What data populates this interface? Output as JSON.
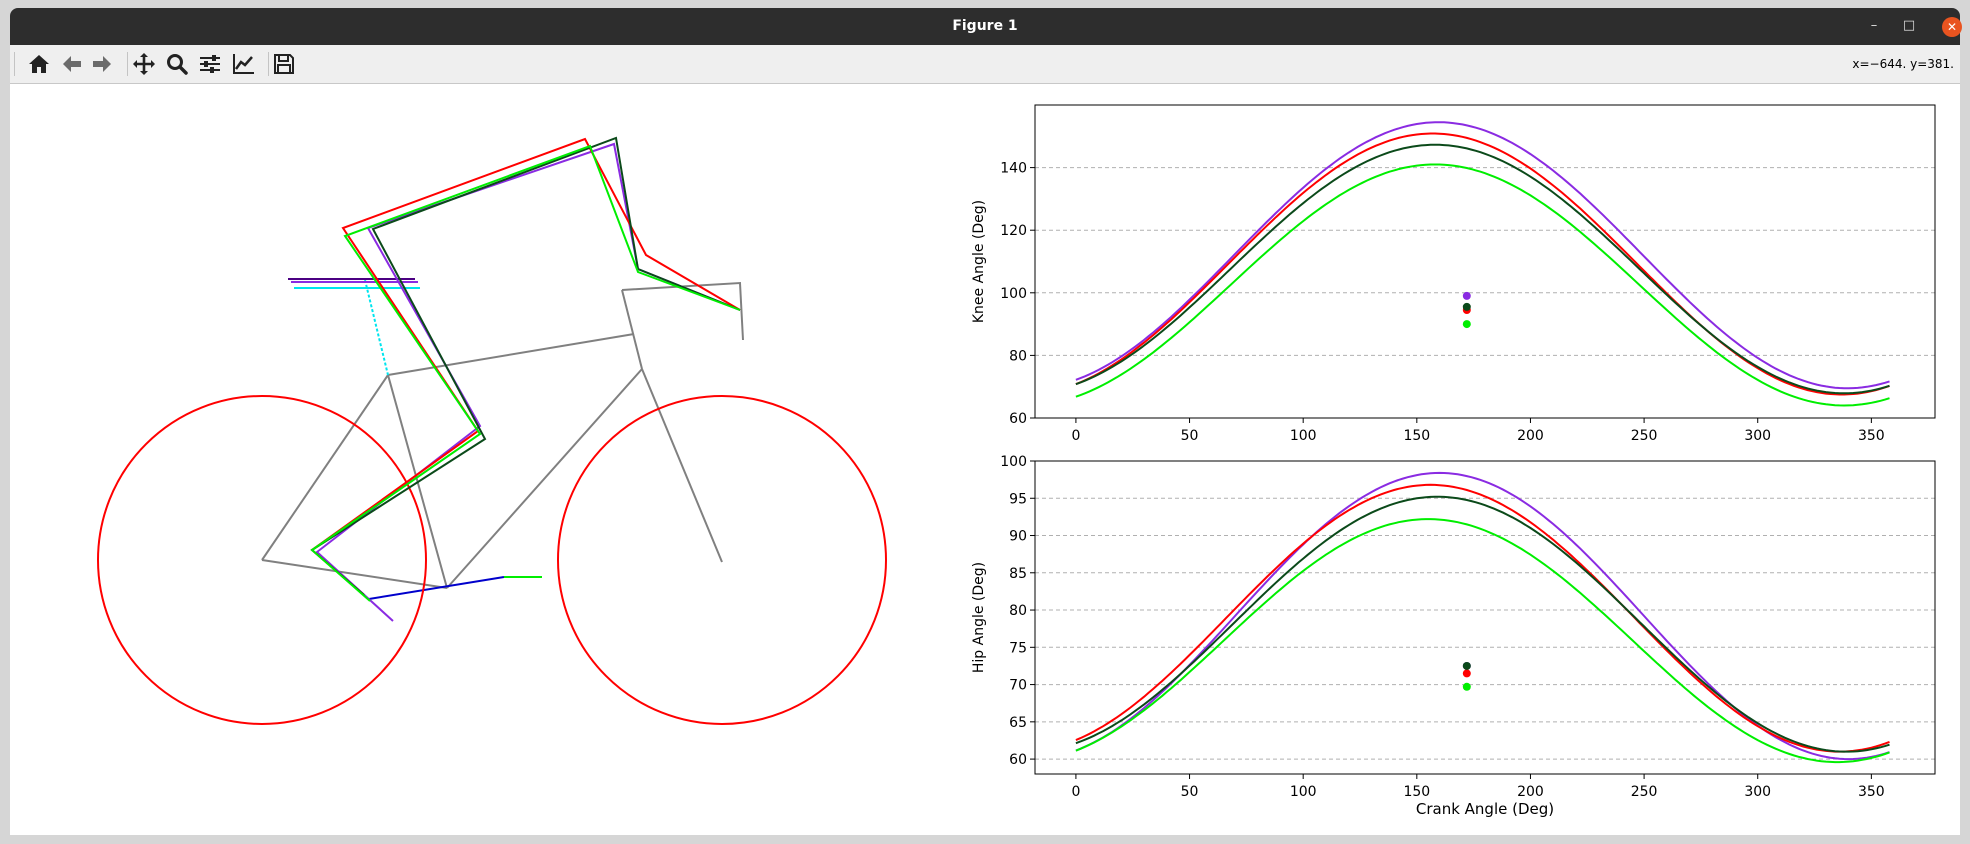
{
  "window": {
    "title": "Figure 1",
    "min_glyph": "–",
    "max_glyph": "□",
    "close_glyph": "✕"
  },
  "toolbar": {
    "buttons": [
      {
        "id": "home",
        "icon": "home-icon"
      },
      {
        "id": "back",
        "icon": "back-arrow-icon"
      },
      {
        "id": "forward",
        "icon": "forward-arrow-icon"
      },
      {
        "id": "pan",
        "icon": "pan-move-icon"
      },
      {
        "id": "zoom",
        "icon": "zoom-magnifier-icon"
      },
      {
        "id": "subplots",
        "icon": "configure-subplots-icon"
      },
      {
        "id": "axes",
        "icon": "edit-axes-icon"
      },
      {
        "id": "save",
        "icon": "save-disk-icon"
      }
    ],
    "coords": "x=−644. y=381."
  },
  "colors": {
    "red": "#ff0000",
    "green": "#00ee00",
    "darkgreen": "#0b4a1a",
    "purple": "#8a2be2",
    "gray": "#808080",
    "blue": "#0000cc",
    "cyan": "#00e5ee",
    "grid": "#b0b0b0"
  },
  "chart_data": [
    {
      "type": "line",
      "ylabel": "Knee Angle (Deg)",
      "xlim": [
        -18,
        378
      ],
      "ylim": [
        60,
        160
      ],
      "xticks": [
        "0",
        "50",
        "100",
        "150",
        "200",
        "250",
        "300",
        "350"
      ],
      "yticks": [
        "60",
        "80",
        "100",
        "120",
        "140"
      ],
      "grid": "y-dashed",
      "series": [
        {
          "color": "purple",
          "mean": 112,
          "amplitude": 42.5,
          "phase": 159.5,
          "marker": {
            "x": 172,
            "y": 99
          }
        },
        {
          "color": "red",
          "mean": 109.2,
          "amplitude": 41.7,
          "phase": 157,
          "marker": {
            "x": 172,
            "y": 94.5
          }
        },
        {
          "color": "darkgreen",
          "mean": 107.6,
          "amplitude": 39.7,
          "phase": 158,
          "marker": {
            "x": 172,
            "y": 95.5
          }
        },
        {
          "color": "green",
          "mean": 102.5,
          "amplitude": 38.5,
          "phase": 158,
          "marker": {
            "x": 172,
            "y": 90
          }
        }
      ]
    },
    {
      "type": "line",
      "xlabel": "Crank Angle (Deg)",
      "ylabel": "Hip Angle (Deg)",
      "xlim": [
        -18,
        378
      ],
      "ylim": [
        58,
        100
      ],
      "xticks": [
        "0",
        "50",
        "100",
        "150",
        "200",
        "250",
        "300",
        "350"
      ],
      "yticks": [
        "60",
        "65",
        "70",
        "75",
        "80",
        "85",
        "90",
        "95",
        "100"
      ],
      "grid": "y-dashed",
      "series": [
        {
          "color": "purple",
          "mean": 79.2,
          "amplitude": 19.2,
          "phase": 160,
          "marker": {
            "x": 172,
            "y": 72.5
          }
        },
        {
          "color": "red",
          "mean": 78.9,
          "amplitude": 17.9,
          "phase": 156,
          "marker": {
            "x": 172,
            "y": 71.5
          }
        },
        {
          "color": "darkgreen",
          "mean": 78.1,
          "amplitude": 17.1,
          "phase": 159,
          "marker": {
            "x": 172,
            "y": 72.5
          }
        },
        {
          "color": "green",
          "mean": 75.9,
          "amplitude": 16.3,
          "phase": 155,
          "marker": {
            "x": 172,
            "y": 69.7
          }
        }
      ]
    }
  ],
  "bike": {
    "wheels": [
      {
        "name": "rear-wheel",
        "cx": -4,
        "cy": -4,
        "r": 4
      },
      {
        "name": "front-wheel",
        "cx": 4.5,
        "cy": -4,
        "r": 4
      }
    ]
  }
}
